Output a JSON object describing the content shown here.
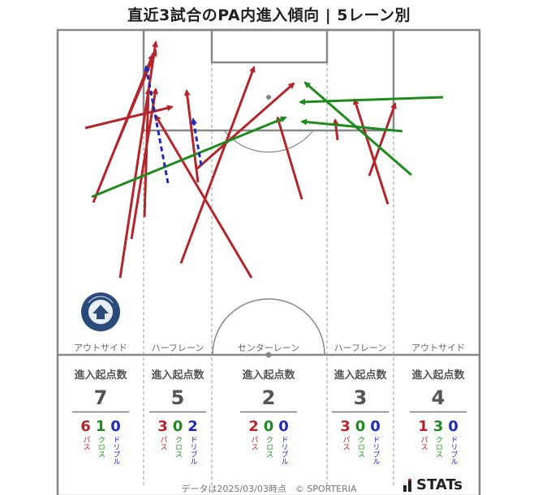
{
  "title": "直近3試合のPA内進入傾向 | 5レーン別",
  "lanes": [
    {
      "label": "アウトサイド",
      "total": "7",
      "pass": "6",
      "cross": "1",
      "dribble": "0"
    },
    {
      "label": "ハーフレーン",
      "total": "5",
      "pass": "3",
      "cross": "0",
      "dribble": "2"
    },
    {
      "label": "センターレーン",
      "total": "2",
      "pass": "2",
      "cross": "0",
      "dribble": "0"
    },
    {
      "label": "ハーフレーン",
      "total": "3",
      "pass": "3",
      "cross": "0",
      "dribble": "0"
    },
    {
      "label": "アウトサイド",
      "total": "4",
      "pass": "1",
      "cross": "3",
      "dribble": "0"
    }
  ],
  "stat_header": "進入起点数",
  "type_labels": {
    "pass": "パス",
    "cross": "クロス",
    "dribble": "ドリブル"
  },
  "colors": {
    "pass": "#b3262b",
    "cross": "#1f8a1f",
    "dribble": "#1f2bb3",
    "pitch_line": "#888888"
  },
  "crest_text": "KAGOSHIMA UNITED FC",
  "footer": "データは2025/03/03時点　© SPORTERIA",
  "brand": "STATs"
}
